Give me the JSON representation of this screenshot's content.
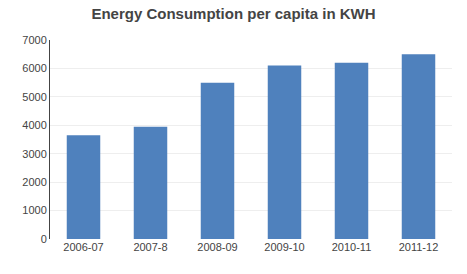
{
  "chart_data": {
    "type": "bar",
    "title": "Energy Consumption per capita in KWH",
    "categories": [
      "2006-07",
      "2007-8",
      "2008-09",
      "2009-10",
      "2010-11",
      "2011-12"
    ],
    "values": [
      3650,
      3950,
      5500,
      6100,
      6200,
      6500
    ],
    "color": "#4F81BD",
    "ylim": [
      0,
      7000
    ],
    "yticks": [
      0,
      1000,
      2000,
      3000,
      4000,
      5000,
      6000,
      7000
    ],
    "grid": true
  }
}
